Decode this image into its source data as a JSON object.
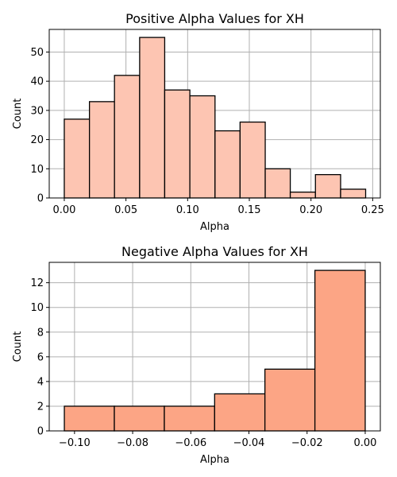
{
  "colors": {
    "positive_bar": "#fdc5b2",
    "negative_bar": "#fca585",
    "grid": "#b0b0b0"
  },
  "chart_data": [
    {
      "type": "bar",
      "title": "Positive Alpha Values for XH",
      "xlabel": "Alpha",
      "ylabel": "Count",
      "grid": true,
      "xlim": [
        -0.0122,
        0.2562
      ],
      "ylim": [
        0,
        57.75
      ],
      "xticks": [
        0.0,
        0.05,
        0.1,
        0.15,
        0.2,
        0.25
      ],
      "xtick_labels": [
        "0.00",
        "0.05",
        "0.10",
        "0.15",
        "0.20",
        "0.25"
      ],
      "yticks": [
        0,
        10,
        20,
        30,
        40,
        50
      ],
      "bin_edges": [
        0.0,
        0.0204,
        0.0407,
        0.0611,
        0.0814,
        0.1018,
        0.1222,
        0.1425,
        0.1629,
        0.1832,
        0.2036,
        0.224,
        0.2443
      ],
      "values": [
        27,
        33,
        42,
        55,
        37,
        35,
        23,
        26,
        10,
        2,
        8,
        3
      ]
    },
    {
      "type": "bar",
      "title": "Negative Alpha Values for XH",
      "xlabel": "Alpha",
      "ylabel": "Count",
      "grid": true,
      "xlim": [
        -0.1087,
        0.0052
      ],
      "ylim": [
        0,
        13.65
      ],
      "xticks": [
        -0.1,
        -0.08,
        -0.06,
        -0.04,
        -0.02,
        0.0
      ],
      "xtick_labels": [
        "−0.10",
        "−0.08",
        "−0.06",
        "−0.04",
        "−0.02",
        "0.00"
      ],
      "yticks": [
        0,
        2,
        4,
        6,
        8,
        10,
        12
      ],
      "bin_edges": [
        -0.1035,
        -0.0863,
        -0.0691,
        -0.0518,
        -0.0345,
        -0.0173,
        0.0
      ],
      "values": [
        2,
        2,
        2,
        3,
        5,
        13
      ]
    }
  ]
}
